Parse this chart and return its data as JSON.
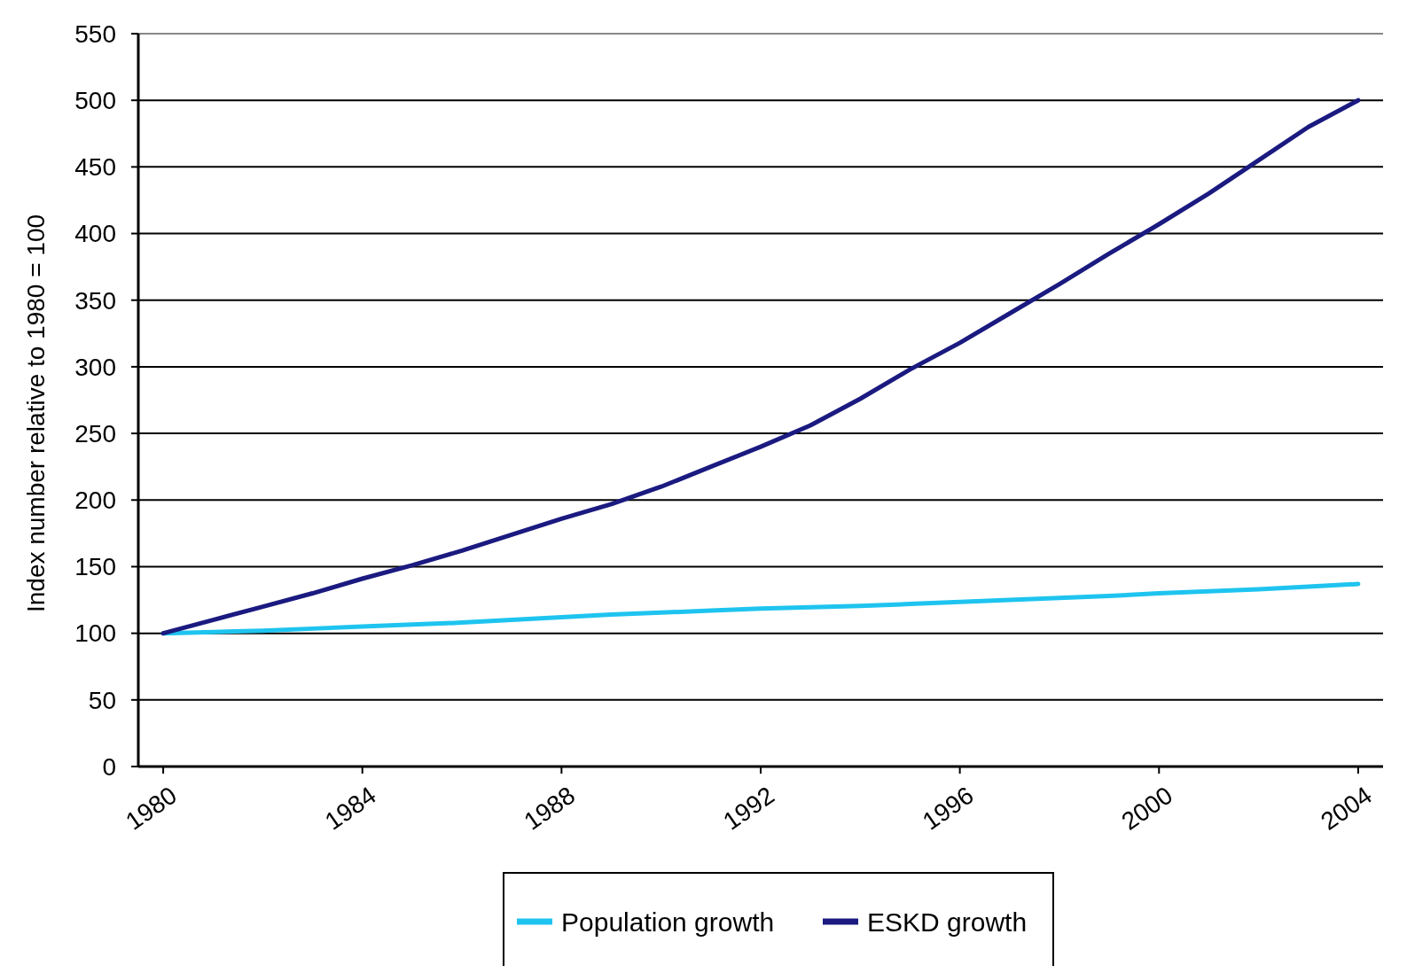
{
  "chart_data": {
    "type": "line",
    "ylabel": "Index number relative to 1980 = 100",
    "x": [
      1980,
      1981,
      1982,
      1983,
      1984,
      1985,
      1986,
      1987,
      1988,
      1989,
      1990,
      1991,
      1992,
      1993,
      1994,
      1995,
      1996,
      1997,
      1998,
      1999,
      2000,
      2001,
      2002,
      2003,
      2004
    ],
    "series": [
      {
        "name": "Population growth",
        "color": "#1ec4ef",
        "values": [
          100,
          101,
          102,
          103.5,
          105,
          106.5,
          108,
          110,
          112,
          114,
          115.5,
          117,
          118.5,
          119.5,
          120.5,
          122,
          123.5,
          125,
          126.5,
          128,
          130,
          131.5,
          133,
          135,
          137
        ]
      },
      {
        "name": "ESKD growth",
        "color": "#1a1a80",
        "values": [
          100,
          110,
          120,
          130,
          141,
          151,
          162,
          174,
          186,
          197,
          210,
          225,
          240,
          256,
          276,
          298,
          318,
          340,
          362,
          385,
          407,
          430,
          455,
          480,
          500
        ]
      }
    ],
    "xlim": [
      1979.5,
      2004.5
    ],
    "xticks": [
      1980,
      1984,
      1988,
      1992,
      1996,
      2000,
      2004
    ],
    "ylim": [
      0,
      550
    ],
    "yticks": [
      0,
      50,
      100,
      150,
      200,
      250,
      300,
      350,
      400,
      450,
      500,
      550
    ],
    "grid": "y",
    "legend": "bottom",
    "marker": "none",
    "line_style": "solid"
  }
}
